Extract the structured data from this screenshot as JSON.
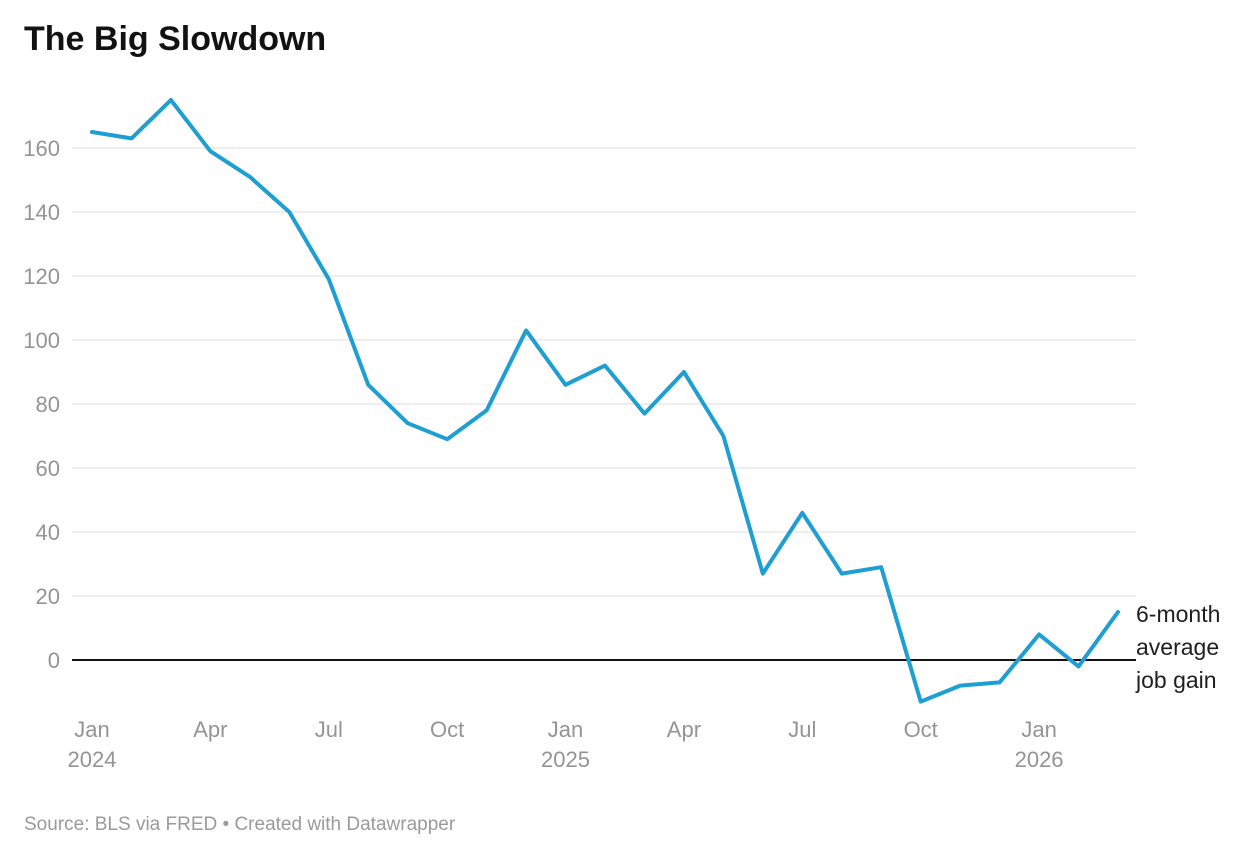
{
  "page": {
    "source": "Source: BLS via FRED • Created with Datawrapper"
  },
  "chart_data": {
    "type": "line",
    "title": "The Big Slowdown",
    "series_label": "6-month average job gain",
    "categories": [
      "Jan 2024",
      "Feb 2024",
      "Mar 2024",
      "Apr 2024",
      "May 2024",
      "Jun 2024",
      "Jul 2024",
      "Aug 2024",
      "Sep 2024",
      "Oct 2024",
      "Nov 2024",
      "Dec 2024",
      "Jan 2025",
      "Feb 2025",
      "Mar 2025",
      "Apr 2025",
      "May 2025",
      "Jun 2025",
      "Jul 2025",
      "Aug 2025",
      "Sep 2025",
      "Oct 2025",
      "Nov 2025",
      "Dec 2025",
      "Jan 2026",
      "Feb 2026",
      "Mar 2026"
    ],
    "values": [
      165,
      163,
      175,
      159,
      151,
      140,
      119,
      86,
      74,
      69,
      78,
      103,
      86,
      92,
      77,
      90,
      70,
      27,
      46,
      27,
      29,
      -13,
      -8,
      -7,
      8,
      -2,
      15
    ],
    "yticks": [
      0,
      20,
      40,
      60,
      80,
      100,
      120,
      140,
      160
    ],
    "xticks": [
      {
        "index": 0,
        "label": "Jan",
        "year": "2024"
      },
      {
        "index": 3,
        "label": "Apr",
        "year": ""
      },
      {
        "index": 6,
        "label": "Jul",
        "year": ""
      },
      {
        "index": 9,
        "label": "Oct",
        "year": ""
      },
      {
        "index": 12,
        "label": "Jan",
        "year": "2025"
      },
      {
        "index": 15,
        "label": "Apr",
        "year": ""
      },
      {
        "index": 18,
        "label": "Jul",
        "year": ""
      },
      {
        "index": 21,
        "label": "Oct",
        "year": ""
      },
      {
        "index": 24,
        "label": "Jan",
        "year": "2026"
      }
    ],
    "ylim": [
      -20,
      180
    ],
    "grid": true,
    "legend_position": "right-annotation",
    "colors": {
      "line": "#1e9ed3",
      "gridline": "#e8e8e8",
      "zero_line": "#111111",
      "tick_text": "#949494",
      "title_text": "#121212",
      "annotation_text": "#1f1f1f",
      "source_text": "#9a9a9a"
    }
  }
}
